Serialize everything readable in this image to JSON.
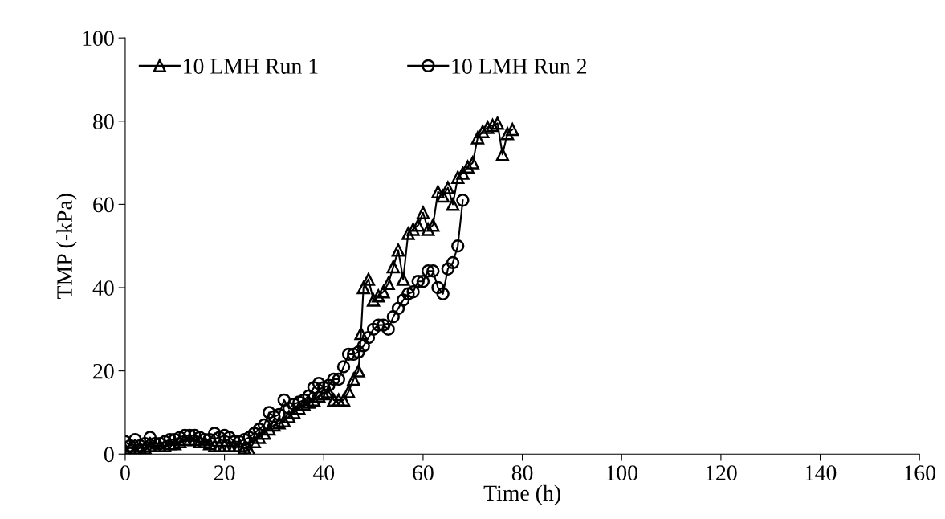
{
  "chart_data": {
    "type": "line",
    "xlabel": "Time (h)",
    "ylabel": "TMP (-kPa)",
    "xlim": [
      0,
      160
    ],
    "xticks": [
      0,
      20,
      40,
      60,
      80,
      100,
      120,
      140,
      160
    ],
    "ylim": [
      0,
      100
    ],
    "yticks": [
      0,
      20,
      40,
      60,
      80,
      100
    ],
    "grid": false,
    "legend": "top",
    "line_style": "solid",
    "series": [
      {
        "name": "10 LMH Run 1",
        "color": "#000000",
        "marker": "triangle",
        "x": [
          0,
          1,
          2,
          3,
          4,
          5,
          6,
          7,
          8,
          9,
          10,
          11,
          12,
          13,
          14,
          15,
          16,
          17,
          18,
          19,
          20,
          21,
          22,
          23,
          24,
          25,
          26,
          27,
          28,
          29,
          30,
          31,
          32,
          33,
          34,
          35,
          36,
          37,
          38,
          39,
          40,
          41,
          42,
          43,
          44,
          45,
          46,
          47,
          47.5,
          48,
          49,
          50,
          51,
          52,
          53,
          54,
          55,
          56,
          57,
          58,
          59,
          60,
          61,
          62,
          63,
          64,
          65,
          66,
          67,
          68,
          69,
          70,
          71,
          72,
          73,
          74,
          75,
          76,
          77,
          78
        ],
        "values": [
          1,
          1.5,
          1,
          1.5,
          1.5,
          2,
          2,
          2,
          2,
          2.5,
          2.5,
          3,
          3.5,
          3.5,
          3.5,
          3,
          3,
          2.5,
          2,
          2,
          2,
          2,
          2,
          2,
          1.5,
          1,
          3,
          4,
          5,
          6,
          7,
          7.5,
          8,
          9,
          10,
          11,
          12,
          12.5,
          13,
          14,
          14.5,
          15,
          13,
          13,
          13,
          15,
          18,
          20,
          29,
          40,
          42,
          37,
          38,
          39,
          41,
          45,
          49,
          42,
          53,
          54,
          55,
          58,
          54,
          55,
          63,
          62,
          64,
          60,
          66.5,
          67.5,
          69,
          70,
          76,
          77.5,
          78.5,
          79,
          79.5,
          72,
          77,
          78
        ]
      },
      {
        "name": "10 LMH Run 2",
        "color": "#000000",
        "marker": "circle",
        "x": [
          0,
          1,
          2,
          3,
          4,
          5,
          6,
          7,
          8,
          9,
          10,
          11,
          12,
          13,
          14,
          15,
          16,
          17,
          18,
          19,
          20,
          21,
          22,
          23,
          24,
          25,
          26,
          27,
          28,
          29,
          30,
          31,
          32,
          33,
          34,
          35,
          36,
          37,
          38,
          39,
          40,
          41,
          42,
          43,
          44,
          45,
          46,
          47,
          48,
          49,
          50,
          51,
          52,
          53,
          54,
          55,
          56,
          57,
          58,
          59,
          60,
          61,
          62,
          63,
          64,
          65,
          66,
          67,
          68
        ],
        "values": [
          3,
          2,
          3.5,
          2,
          2.5,
          4,
          2.5,
          2.5,
          3,
          3.5,
          3.5,
          4,
          4.5,
          4.5,
          4.5,
          4,
          3.5,
          3.5,
          5,
          4,
          4.5,
          4,
          3,
          3,
          3.5,
          4,
          5,
          6,
          7,
          10,
          9,
          9.5,
          13,
          11,
          12,
          12.5,
          13,
          14,
          16,
          17,
          16,
          16.5,
          18,
          18,
          21,
          24,
          24,
          24.5,
          26,
          28,
          30,
          31,
          31,
          30,
          33,
          35,
          37,
          38.5,
          39,
          41.5,
          41.5,
          44,
          44,
          40,
          38.5,
          44.5,
          46,
          50,
          61
        ]
      }
    ]
  }
}
